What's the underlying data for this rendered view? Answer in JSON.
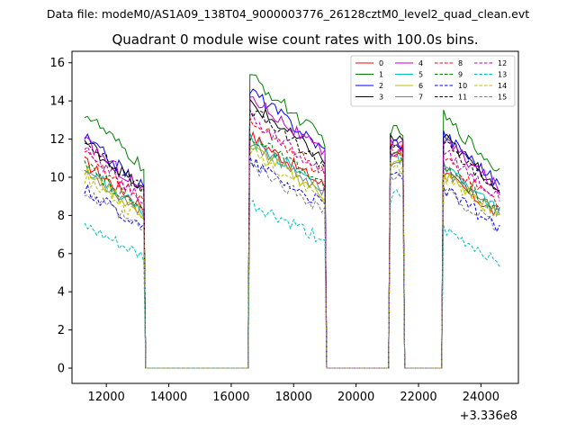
{
  "suptitle": "Data file: modeM0/AS1A09_138T04_9000003776_26128cztM0_level2_quad_clean.evt",
  "chart_data": {
    "type": "line",
    "title": "Quadrant 0 module wise count rates with 100.0s bins.",
    "xlabel": "",
    "ylabel": "",
    "x_offset_label": "+3.336e8",
    "xlim": [
      10900,
      25200
    ],
    "ylim": [
      -0.8,
      16.6
    ],
    "xticks": [
      12000,
      14000,
      16000,
      18000,
      20000,
      22000,
      24000
    ],
    "yticks": [
      0,
      2,
      4,
      6,
      8,
      10,
      12,
      14,
      16
    ],
    "legend_position": "upper right",
    "segments": [
      {
        "start": 11300,
        "end": 13200
      },
      {
        "start": 16600,
        "end": 19000
      },
      {
        "start": 21100,
        "end": 21500
      },
      {
        "start": 22800,
        "end": 24600
      }
    ],
    "gaps": [
      [
        13200,
        16600
      ],
      [
        19000,
        21100
      ],
      [
        21500,
        22800
      ]
    ],
    "series": [
      {
        "name": "0",
        "color": "#ff0000",
        "dash": "solid",
        "levels": [
          10.8,
          12.2,
          11.3,
          10.2
        ]
      },
      {
        "name": "1",
        "color": "#008000",
        "dash": "solid",
        "levels": [
          13.4,
          15.3,
          12.4,
          13.2
        ]
      },
      {
        "name": "2",
        "color": "#0000ff",
        "dash": "solid",
        "levels": [
          12.1,
          14.6,
          11.8,
          12.3
        ]
      },
      {
        "name": "3",
        "color": "#000000",
        "dash": "solid",
        "levels": [
          11.9,
          13.9,
          12.0,
          12.1
        ]
      },
      {
        "name": "4",
        "color": "#bf00bf",
        "dash": "solid",
        "levels": [
          11.9,
          14.3,
          11.9,
          12.0
        ]
      },
      {
        "name": "5",
        "color": "#00bfbf",
        "dash": "solid",
        "levels": [
          10.5,
          12.0,
          11.0,
          10.5
        ]
      },
      {
        "name": "6",
        "color": "#bfbf00",
        "dash": "solid",
        "levels": [
          10.3,
          11.6,
          10.7,
          10.2
        ]
      },
      {
        "name": "7",
        "color": "#808080",
        "dash": "solid",
        "levels": [
          10.4,
          11.9,
          10.8,
          10.4
        ]
      },
      {
        "name": "8",
        "color": "#ff0000",
        "dash": "dashed",
        "levels": [
          11.2,
          13.0,
          11.5,
          11.0
        ]
      },
      {
        "name": "9",
        "color": "#008000",
        "dash": "dashed",
        "levels": [
          10.6,
          12.2,
          11.0,
          10.5
        ]
      },
      {
        "name": "10",
        "color": "#0000ff",
        "dash": "dashed",
        "levels": [
          9.4,
          10.9,
          10.1,
          9.4
        ]
      },
      {
        "name": "11",
        "color": "#000000",
        "dash": "dashed",
        "levels": [
          11.9,
          13.6,
          11.7,
          11.8
        ]
      },
      {
        "name": "12",
        "color": "#bf00bf",
        "dash": "dashed",
        "levels": [
          11.4,
          13.1,
          11.4,
          11.4
        ]
      },
      {
        "name": "13",
        "color": "#00bfbf",
        "dash": "dashed",
        "levels": [
          7.4,
          8.6,
          9.0,
          7.2
        ]
      },
      {
        "name": "14",
        "color": "#bfbf00",
        "dash": "dashed",
        "levels": [
          10.0,
          11.4,
          10.5,
          10.1
        ]
      },
      {
        "name": "15",
        "color": "#808080",
        "dash": "dashed",
        "levels": [
          9.2,
          10.6,
          10.0,
          9.3
        ]
      }
    ]
  }
}
